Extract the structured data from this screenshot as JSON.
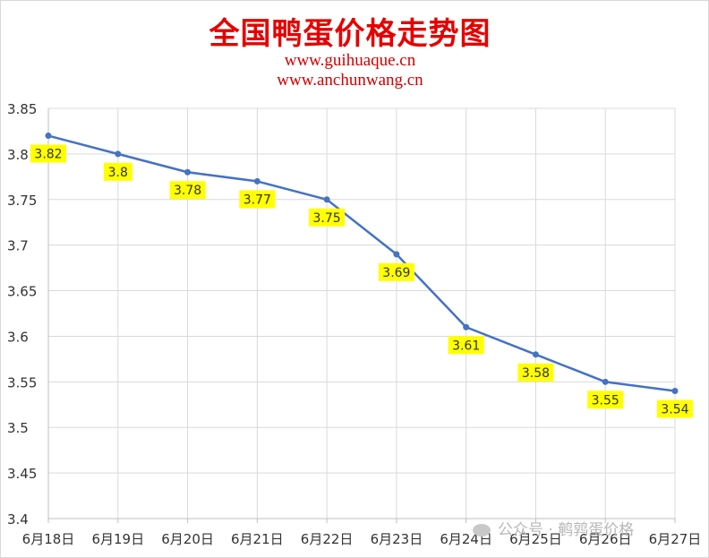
{
  "chart_data": {
    "type": "line",
    "title": "全国鸭蛋价格走势图",
    "subtitles": [
      "www.guihuaque.cn",
      "www.anchunwang.cn"
    ],
    "categories": [
      "6月18日",
      "6月19日",
      "6月20日",
      "6月21日",
      "6月22日",
      "6月23日",
      "6月24日",
      "6月25日",
      "6月26日",
      "6月27日"
    ],
    "series": [
      {
        "values": [
          3.82,
          3.8,
          3.78,
          3.77,
          3.75,
          3.69,
          3.61,
          3.58,
          3.55,
          3.54
        ],
        "color": "#4472c4"
      }
    ],
    "data_labels": [
      "3.82",
      "3.8",
      "3.78",
      "3.77",
      "3.75",
      "3.69",
      "3.61",
      "3.58",
      "3.55",
      "3.54"
    ],
    "y_ticks": [
      "3.4",
      "3.45",
      "3.5",
      "3.55",
      "3.6",
      "3.65",
      "3.7",
      "3.75",
      "3.8",
      "3.85"
    ],
    "ylim": [
      3.4,
      3.85
    ],
    "grid": true,
    "label_bg": "#ffff00"
  },
  "watermark": "公众号 · 鹌鹑蛋价格"
}
